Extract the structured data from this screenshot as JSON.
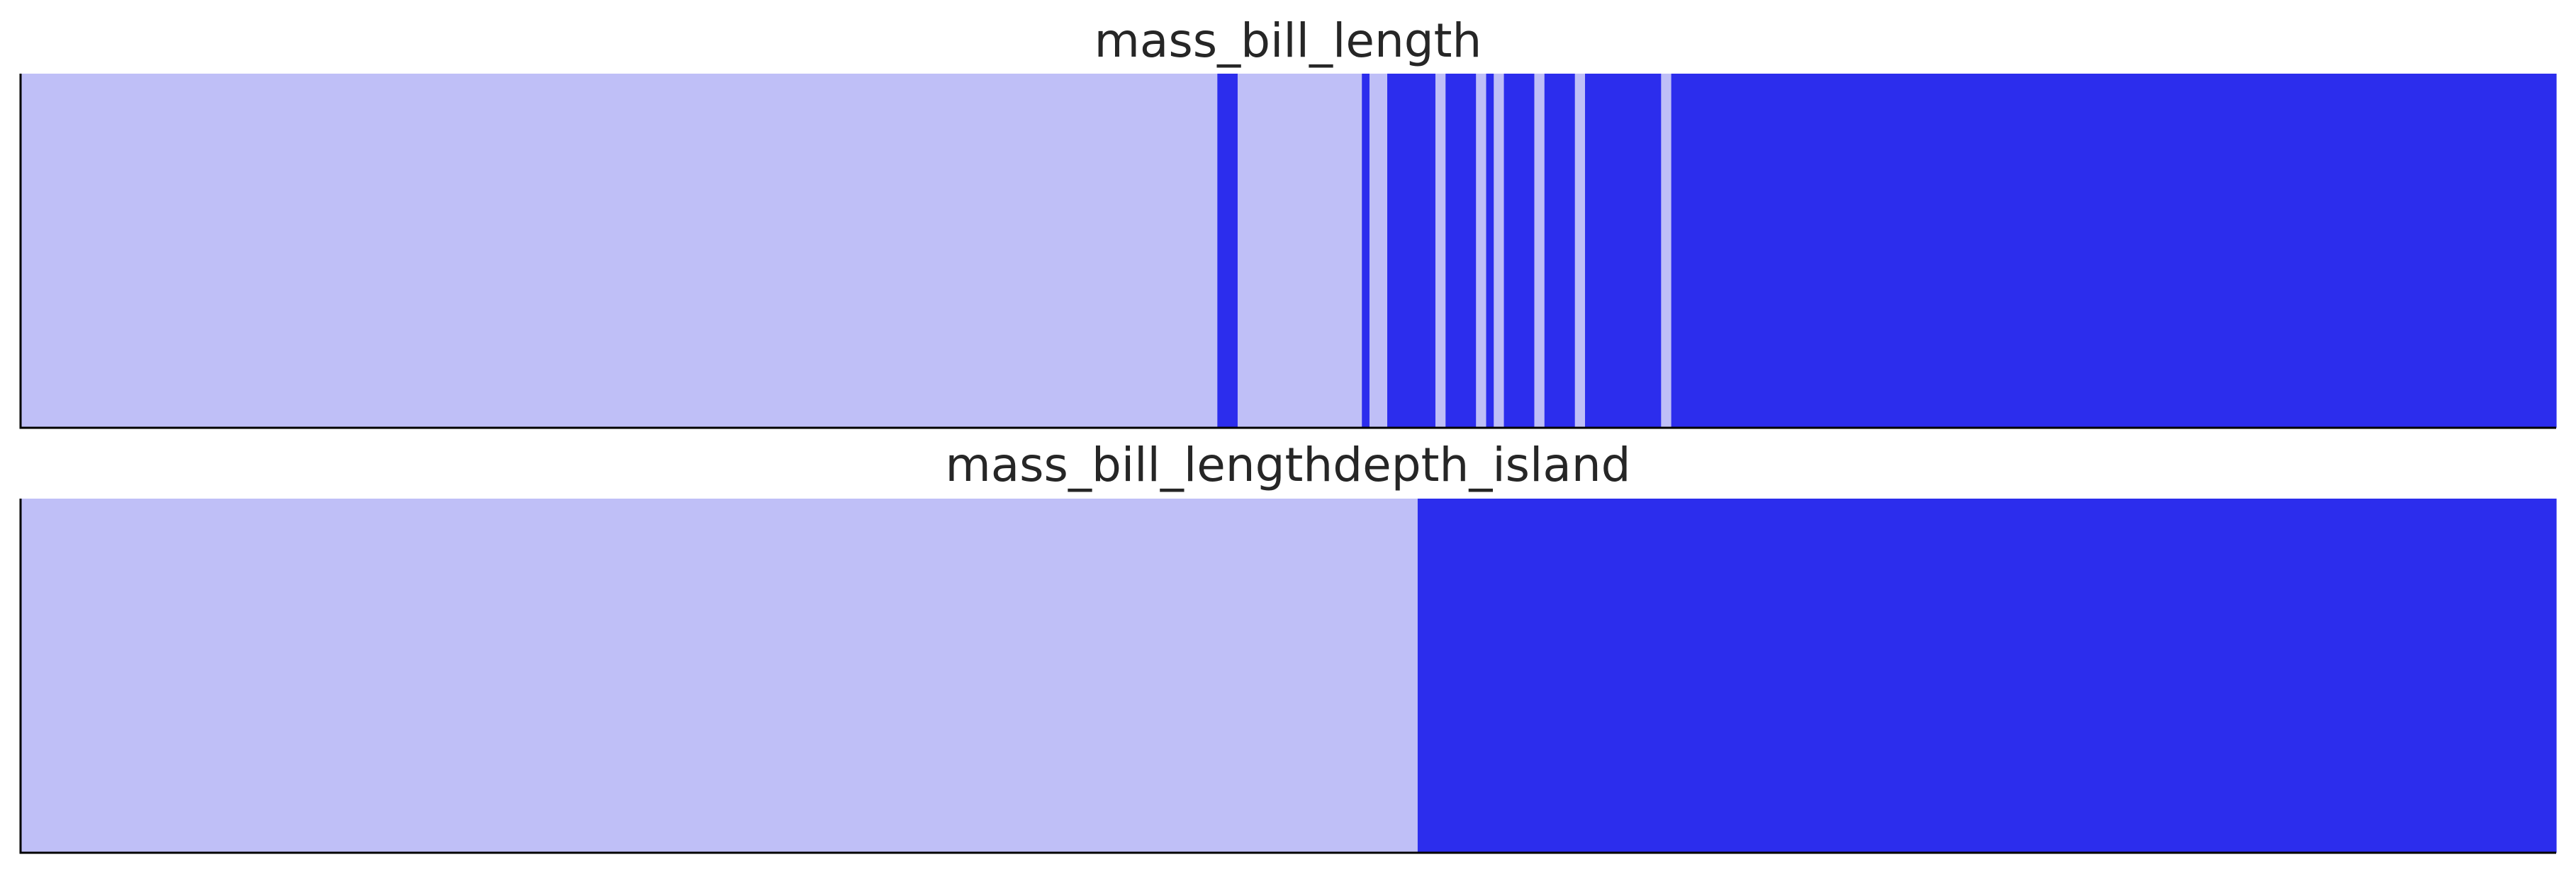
{
  "chart_data": [
    {
      "type": "heatmap",
      "title": "mass_bill_length",
      "xlabel": "",
      "ylabel": "",
      "xlim": [
        0,
        1
      ],
      "grid": false,
      "legend": "none",
      "colors": {
        "light": "#bfbff7",
        "dark": "#2c2ded"
      },
      "segments": [
        {
          "start": 0.0,
          "end": 0.472,
          "color": "light"
        },
        {
          "start": 0.472,
          "end": 0.48,
          "color": "dark"
        },
        {
          "start": 0.48,
          "end": 0.529,
          "color": "light"
        },
        {
          "start": 0.529,
          "end": 0.532,
          "color": "dark"
        },
        {
          "start": 0.532,
          "end": 0.539,
          "color": "light"
        },
        {
          "start": 0.539,
          "end": 0.558,
          "color": "dark"
        },
        {
          "start": 0.558,
          "end": 0.562,
          "color": "light"
        },
        {
          "start": 0.562,
          "end": 0.574,
          "color": "dark"
        },
        {
          "start": 0.574,
          "end": 0.578,
          "color": "light"
        },
        {
          "start": 0.578,
          "end": 0.581,
          "color": "dark"
        },
        {
          "start": 0.581,
          "end": 0.585,
          "color": "light"
        },
        {
          "start": 0.585,
          "end": 0.597,
          "color": "dark"
        },
        {
          "start": 0.597,
          "end": 0.601,
          "color": "light"
        },
        {
          "start": 0.601,
          "end": 0.613,
          "color": "dark"
        },
        {
          "start": 0.613,
          "end": 0.617,
          "color": "light"
        },
        {
          "start": 0.617,
          "end": 0.647,
          "color": "dark"
        },
        {
          "start": 0.647,
          "end": 0.651,
          "color": "light"
        },
        {
          "start": 0.651,
          "end": 1.0,
          "color": "dark"
        }
      ]
    },
    {
      "type": "heatmap",
      "title": "mass_bill_lengthdepth_island",
      "xlabel": "",
      "ylabel": "",
      "xlim": [
        0,
        1
      ],
      "grid": false,
      "legend": "none",
      "colors": {
        "light": "#bfbff7",
        "dark": "#2c2ded"
      },
      "segments": [
        {
          "start": 0.0,
          "end": 0.551,
          "color": "light"
        },
        {
          "start": 0.551,
          "end": 1.0,
          "color": "dark"
        }
      ]
    }
  ]
}
